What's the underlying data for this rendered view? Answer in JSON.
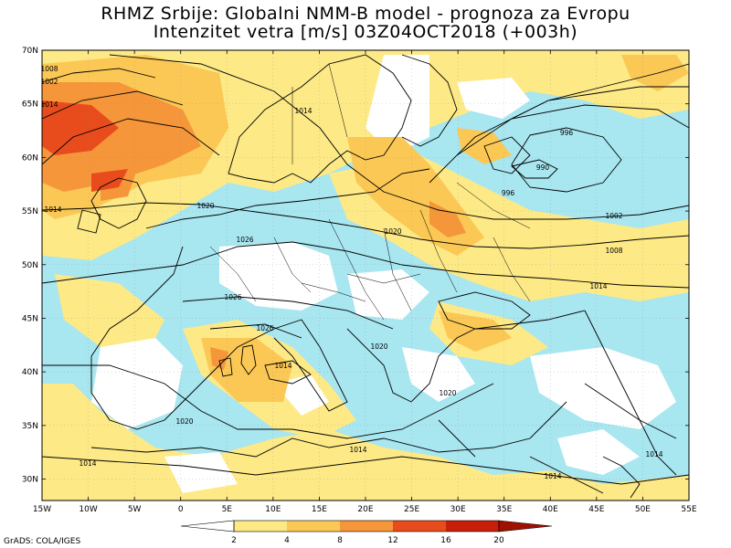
{
  "header": {
    "line1": "RHMZ Srbije: Globalni NMM-B model - prognoza za Evropu",
    "line2": "Intenzitet vetra [m/s] 03Z04OCT2018 (+003h)"
  },
  "axes": {
    "lat_labels": [
      "70N",
      "65N",
      "60N",
      "55N",
      "50N",
      "45N",
      "40N",
      "35N",
      "30N"
    ],
    "lon_labels": [
      "15W",
      "10W",
      "5W",
      "0",
      "5E",
      "10E",
      "15E",
      "20E",
      "25E",
      "30E",
      "35E",
      "40E",
      "45E",
      "50E",
      "55E"
    ]
  },
  "legend": {
    "ticks": [
      "2",
      "4",
      "8",
      "12",
      "16",
      "20"
    ],
    "colors": [
      "#ffffff",
      "#a8e6f0",
      "#fde986",
      "#fbc855",
      "#f5963a",
      "#e84c1c",
      "#c81e0a",
      "#a01000"
    ]
  },
  "isobars": [
    "1014",
    "1008",
    "1002",
    "1020",
    "1014",
    "1020",
    "1026",
    "1026",
    "1026",
    "1014",
    "1020",
    "1020",
    "1014",
    "1014",
    "996",
    "990",
    "996",
    "1002",
    "1008",
    "1014",
    "1014",
    "1014",
    "1014",
    "1020"
  ],
  "credit": "GrADS: COLA/IGES",
  "chart_data": {
    "type": "heatmap",
    "title": "RHMZ Srbije: Globalni NMM-B model - prognoza za Evropu",
    "subtitle": "Intenzitet vetra [m/s] 03Z04OCT2018 (+003h)",
    "xlabel": "",
    "ylabel": "",
    "xlim": [
      -15,
      55
    ],
    "ylim": [
      28,
      70
    ],
    "x_ticks": [
      -15,
      -10,
      -5,
      0,
      5,
      10,
      15,
      20,
      25,
      30,
      35,
      40,
      45,
      50,
      55
    ],
    "y_ticks": [
      30,
      35,
      40,
      45,
      50,
      55,
      60,
      65,
      70
    ],
    "colorbar_levels": [
      2,
      4,
      8,
      12,
      16,
      20
    ],
    "units": "m/s",
    "wind_maxima": [
      {
        "lon": -12,
        "lat": 62,
        "speed": 16
      },
      {
        "lon": -10,
        "lat": 57,
        "speed": 16
      },
      {
        "lon": 3,
        "lat": 40,
        "speed": 12
      },
      {
        "lon": 28,
        "lat": 53,
        "speed": 12
      },
      {
        "lon": 35,
        "lat": 60,
        "speed": 8
      }
    ],
    "pressure_centers": [
      {
        "lon": 38,
        "lat": 59,
        "value": 990,
        "type": "low"
      }
    ],
    "contour_labels": [
      1014,
      1008,
      1002,
      1020,
      1026,
      996,
      990
    ]
  }
}
